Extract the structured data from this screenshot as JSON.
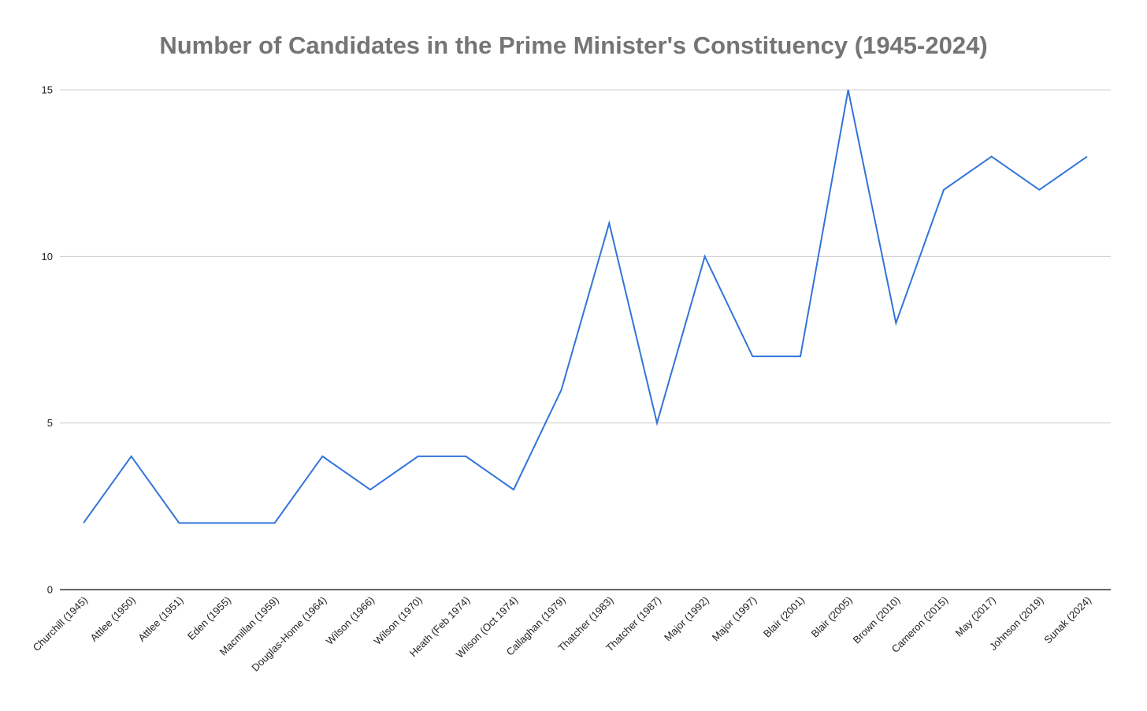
{
  "chart_data": {
    "type": "line",
    "title": "Number of Candidates in the Prime Minister's Constituency (1945-2024)",
    "xlabel": "",
    "ylabel": "",
    "categories": [
      "Churchill (1945)",
      "Attlee (1950)",
      "Attlee (1951)",
      "Eden (1955)",
      "Macmillan (1959)",
      "Douglas-Home (1964)",
      "Wilson (1966)",
      "Wilson (1970)",
      "Heath (Feb 1974)",
      "Wilson (Oct 1974)",
      "Callaghan (1979)",
      "Thatcher (1983)",
      "Thatcher (1987)",
      "Major (1992)",
      "Major (1997)",
      "Blair (2001)",
      "Blair (2005)",
      "Brown (2010)",
      "Cameron (2015)",
      "May (2017)",
      "Johnson (2019)",
      "Sunak (2024)"
    ],
    "series": [
      {
        "values": [
          2,
          4,
          2,
          2,
          2,
          4,
          3,
          4,
          4,
          3,
          6,
          11,
          5,
          10,
          7,
          7,
          15,
          8,
          12,
          13,
          12,
          13
        ],
        "color": "#3274d9"
      }
    ],
    "ylim": [
      0,
      15
    ],
    "yticks": [
      0,
      5,
      10,
      15
    ],
    "grid": true,
    "legend": "none"
  }
}
